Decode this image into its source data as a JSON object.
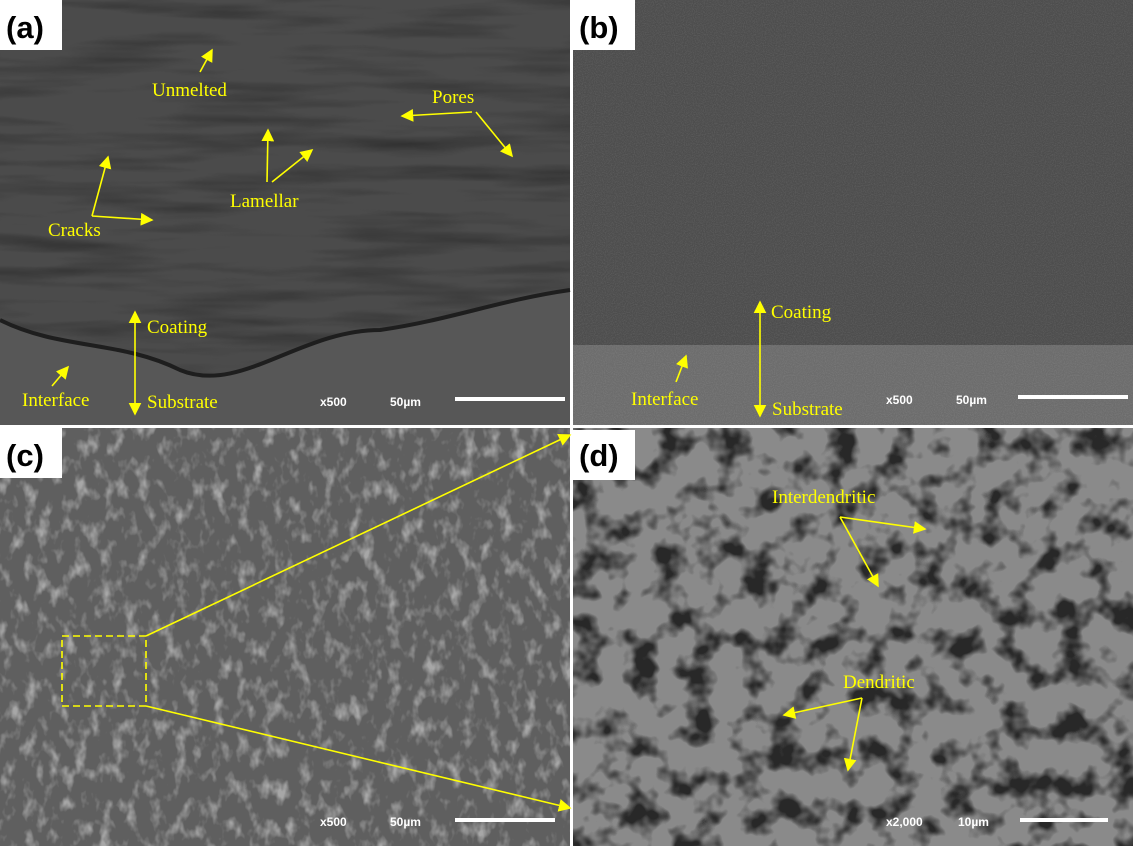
{
  "panels": [
    {
      "label": "(a)",
      "annotations": [
        "Unmelted",
        "Pores",
        "Lamellar",
        "Cracks",
        "Coating",
        "Interface",
        "Substrate"
      ],
      "magnification": "x500",
      "scale_bar": "50µm"
    },
    {
      "label": "(b)",
      "annotations": [
        "Coating",
        "Interface",
        "Substrate"
      ],
      "magnification": "x500",
      "scale_bar": "50µm"
    },
    {
      "label": "(c)",
      "annotations": [],
      "magnification": "x500",
      "scale_bar": "50µm"
    },
    {
      "label": "(d)",
      "annotations": [
        "Interdendritic",
        "Dendritic"
      ],
      "magnification": "x2,000",
      "scale_bar": "10µm"
    }
  ]
}
